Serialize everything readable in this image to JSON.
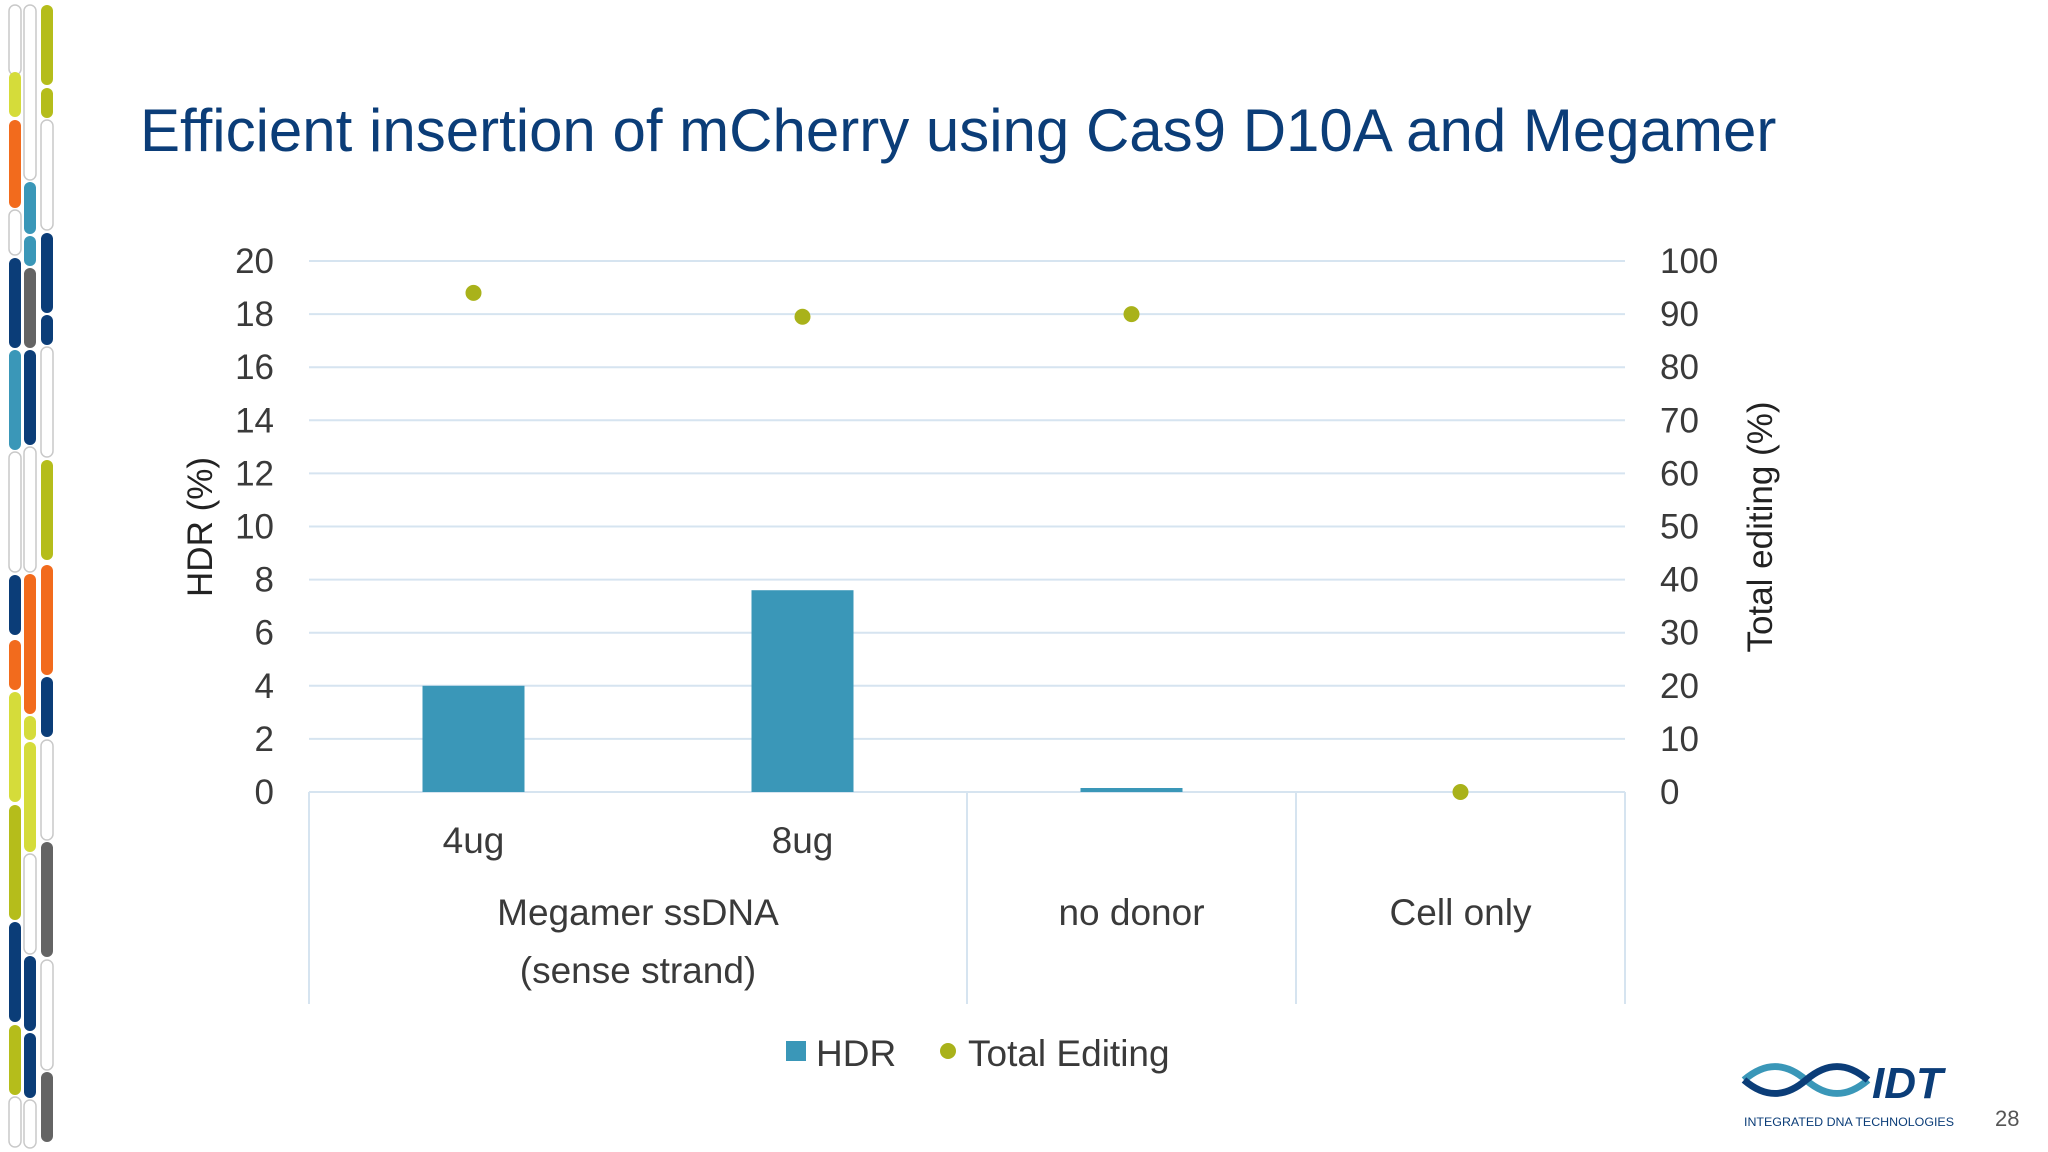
{
  "slide": {
    "title": "Efficient insertion of mCherry using Cas9 D10A and Megamer",
    "page_number": "28"
  },
  "logo": {
    "name": "IDT",
    "tagline": "INTEGRATED DNA TECHNOLOGIES"
  },
  "colors": {
    "title": "#0b3d78",
    "hdr_bar": "#3a97b8",
    "total_editing": "#a9b21a",
    "grid": "#d6e4f0",
    "deco": [
      "#f26b1d",
      "#3a97b8",
      "#0b3d78",
      "#b5bd1b",
      "#646464",
      "#d5dc3a"
    ]
  },
  "chart_data": {
    "type": "bar",
    "title": "",
    "categories": [
      "4ug",
      "8ug",
      "",
      ""
    ],
    "category_groups": [
      {
        "label_lines": [
          "Megamer ssDNA",
          "(sense strand)"
        ],
        "span": 2
      },
      {
        "label_lines": [
          "no donor"
        ],
        "span": 1
      },
      {
        "label_lines": [
          "Cell only"
        ],
        "span": 1
      }
    ],
    "series": [
      {
        "name": "HDR",
        "type": "bar",
        "axis": "left",
        "values": [
          4.0,
          7.6,
          0.1,
          0.0
        ]
      },
      {
        "name": "Total Editing",
        "type": "scatter",
        "axis": "right",
        "values": [
          94,
          89.5,
          90,
          0
        ]
      }
    ],
    "ylabel": "HDR (%)",
    "y2label": "Total editing (%)",
    "ylim": [
      0,
      20
    ],
    "y2lim": [
      0,
      100
    ],
    "yticks": [
      0,
      2,
      4,
      6,
      8,
      10,
      12,
      14,
      16,
      18,
      20
    ],
    "y2ticks": [
      0,
      10,
      20,
      30,
      40,
      50,
      60,
      70,
      80,
      90,
      100
    ],
    "grid": true,
    "legend": "bottom"
  }
}
